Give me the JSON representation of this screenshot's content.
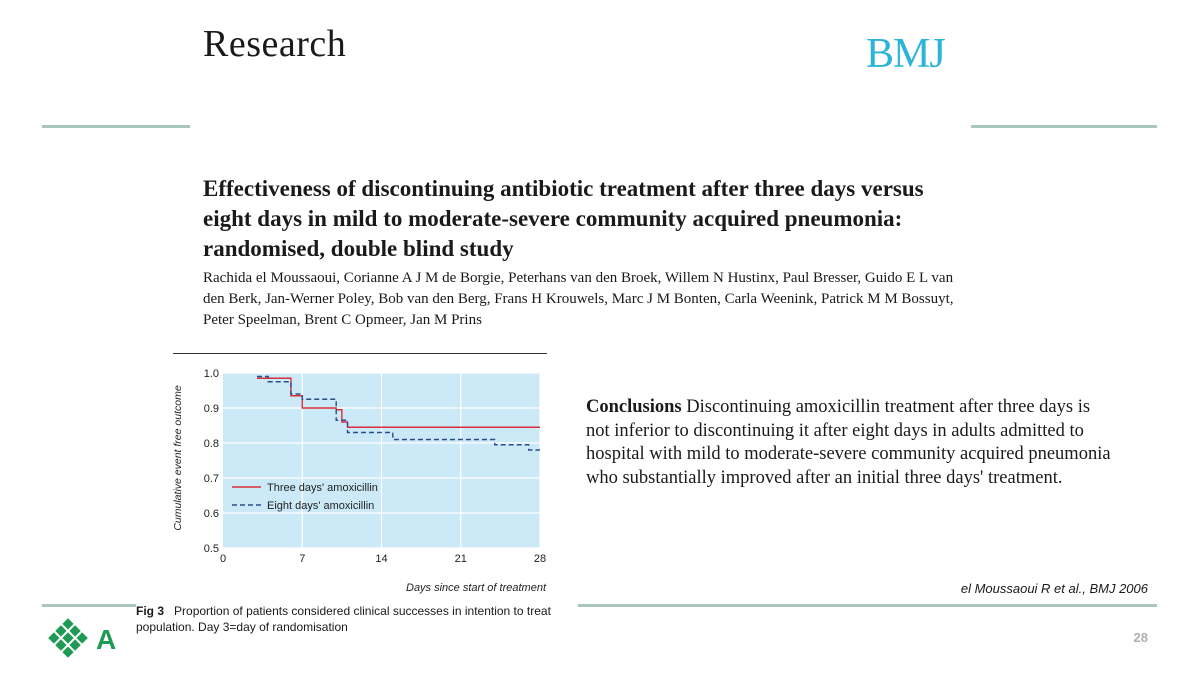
{
  "header": {
    "section_label": "Research",
    "journal_logo": "BMJ"
  },
  "article": {
    "title": "Effectiveness of discontinuing antibiotic treatment after three days versus eight days in mild to moderate-severe community acquired pneumonia: randomised, double blind study",
    "authors": "Rachida el Moussaoui, Corianne A J M de Borgie, Peterhans van den Broek, Willem N Hustinx, Paul Bresser, Guido E L van den Berk, Jan-Werner Poley, Bob van den Berg, Frans H Krouwels, Marc J M Bonten, Carla Weenink, Patrick M M Bossuyt, Peter Speelman, Brent C Opmeer, Jan M Prins"
  },
  "conclusions": {
    "label": "Conclusions",
    "text": "Discontinuing amoxicillin treatment after three days is not inferior to discontinuing it after eight days in adults admitted to hospital with mild to moderate-severe community acquired pneumonia who substantially improved after an initial three days' treatment."
  },
  "figure": {
    "caption_label": "Fig 3",
    "caption_text": "Proportion of patients considered clinical successes in intention to treat population. Day 3=day of randomisation"
  },
  "chart_data": {
    "type": "line",
    "title": "",
    "xlabel": "Days since start of treatment",
    "ylabel": "Cumulative event free outcome",
    "xlim": [
      0,
      28
    ],
    "ylim": [
      0.5,
      1.0
    ],
    "xticks": [
      0,
      7,
      14,
      21,
      28
    ],
    "yticks": [
      0.5,
      0.6,
      0.7,
      0.8,
      0.9,
      1.0
    ],
    "ytick_labels": [
      "0.5",
      "0.6",
      "0.7",
      "0.8",
      "0.9",
      "1.0"
    ],
    "grid": true,
    "legend_position": "bottom-left",
    "series": [
      {
        "name": "Three days' amoxicillin",
        "color": "#d9303a",
        "style": "solid",
        "step": true,
        "x": [
          3,
          6,
          7,
          10,
          10.5,
          11,
          28
        ],
        "y": [
          0.985,
          0.935,
          0.9,
          0.895,
          0.86,
          0.845,
          0.845
        ]
      },
      {
        "name": "Eight days' amoxicillin",
        "color": "#2a4f8a",
        "style": "dashed",
        "step": true,
        "x": [
          3,
          4,
          6,
          7,
          10,
          11,
          15,
          24,
          27,
          28
        ],
        "y": [
          0.99,
          0.975,
          0.94,
          0.925,
          0.865,
          0.83,
          0.81,
          0.795,
          0.78,
          0.78
        ]
      }
    ]
  },
  "footer": {
    "citation": "el Moussaoui R et al., BMJ 2006",
    "page_number": "28",
    "logo_text": "A"
  },
  "colors": {
    "accent_rule": "#a8c8be",
    "bmj_blue": "#2bb3d9",
    "plot_bg": "#cce9f7",
    "logo_green": "#1f9a55"
  }
}
